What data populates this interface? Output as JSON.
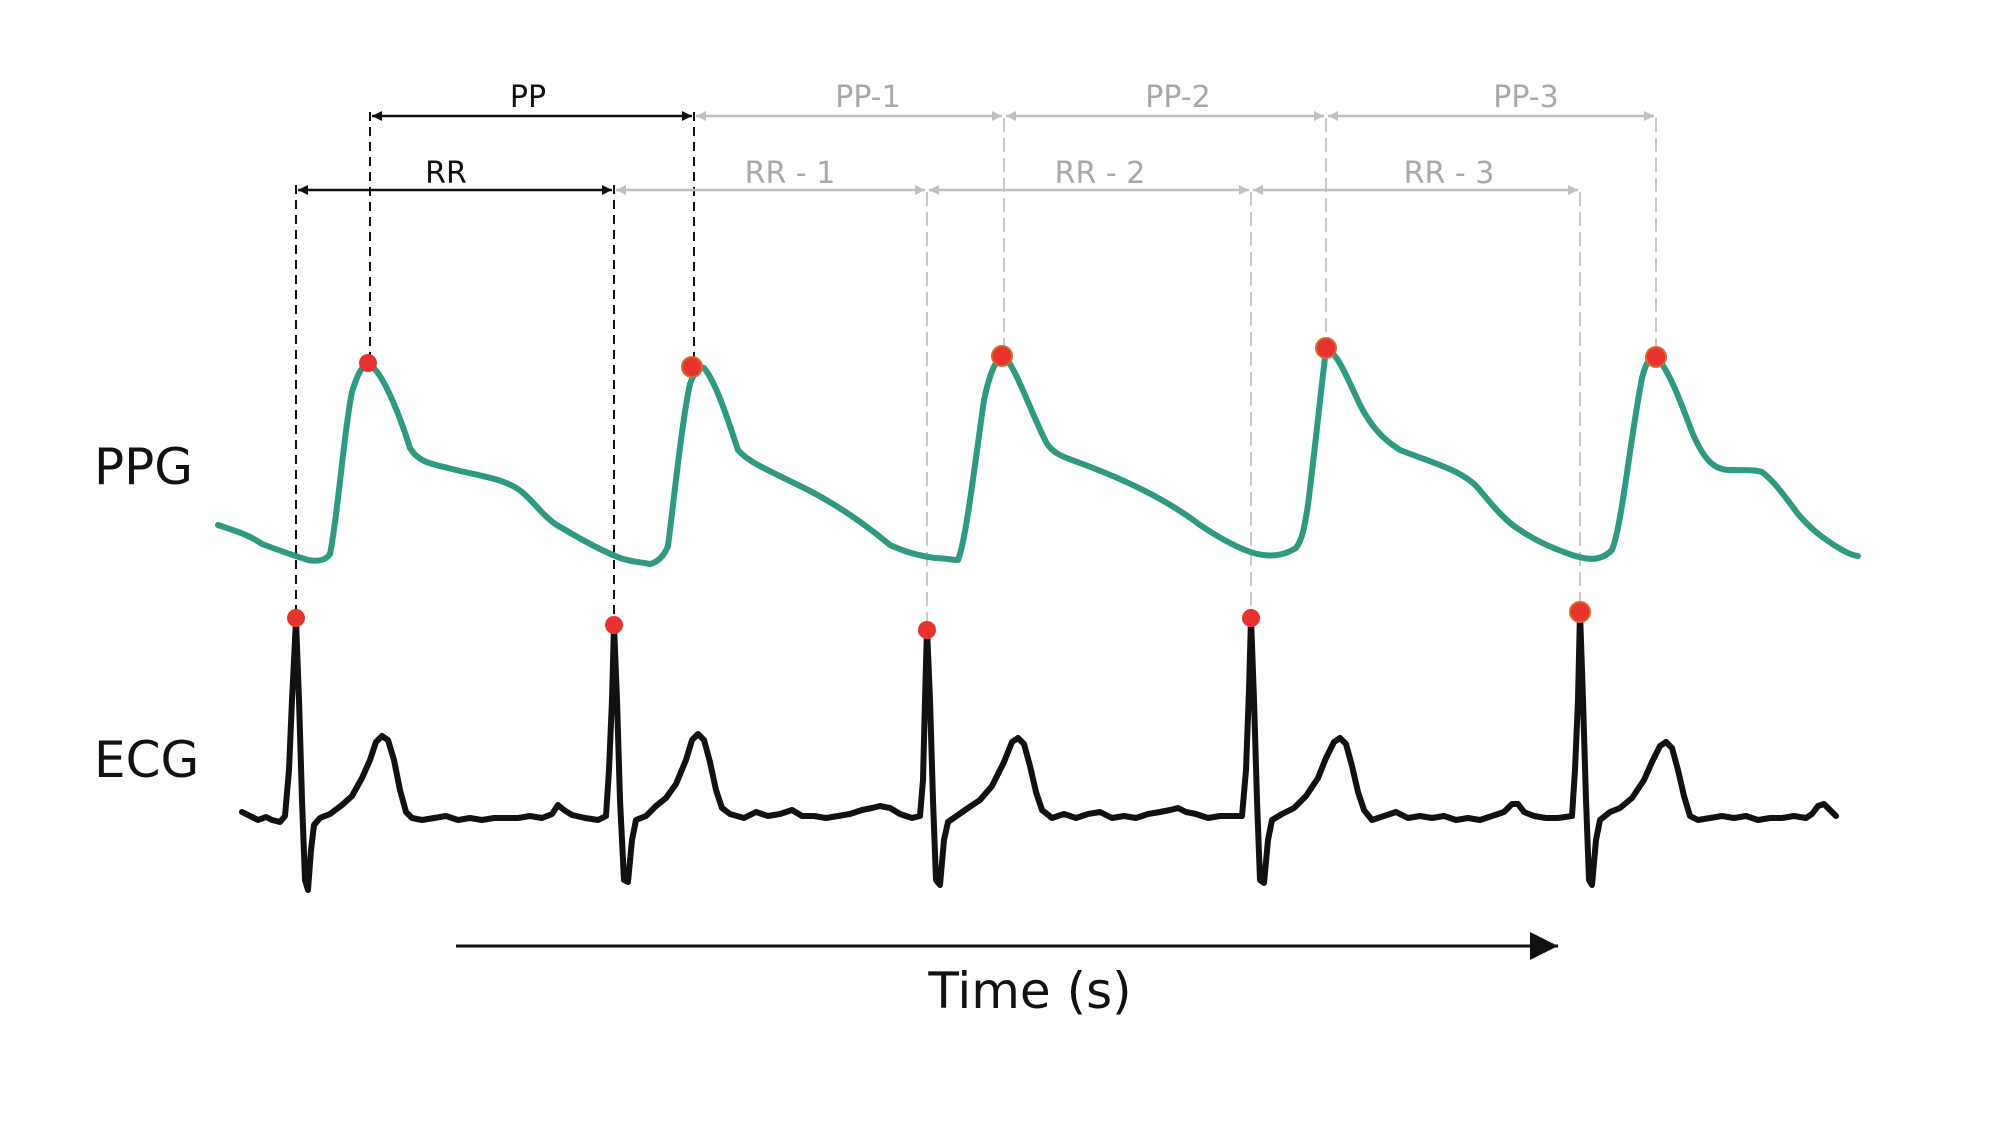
{
  "labels": {
    "ppg": "PPG",
    "ecg": "ECG",
    "time_axis": "Time (s)"
  },
  "intervals": {
    "pp": [
      "PP",
      "PP-1",
      "PP-2",
      "PP-3"
    ],
    "rr": [
      "RR",
      "RR - 1",
      "RR - 2",
      "RR - 3"
    ]
  },
  "colors": {
    "ppg_trace": "#2f9a80",
    "ecg_trace": "#111111",
    "peak_marker": "#e8322e",
    "primary_interval": "#111111",
    "subsequent_interval": "#c0c0c0",
    "subsequent_label": "#a8a8a8",
    "background": "#ffffff"
  }
}
